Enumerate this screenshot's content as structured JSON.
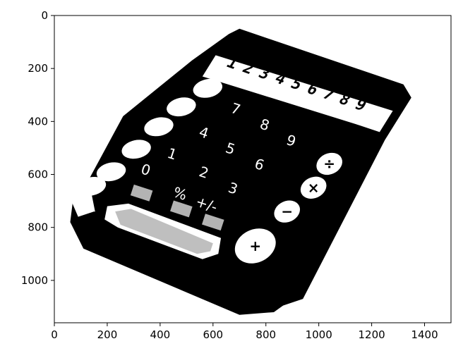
{
  "chart_data": {
    "type": "image",
    "image_subject": "binarized calculator photo",
    "colors": {
      "foreground": "#000000",
      "background": "#ffffff"
    },
    "xlim": [
      0,
      1500
    ],
    "ylim": [
      1160,
      0
    ],
    "y_inverted": true,
    "grid": false,
    "xticks": [
      0,
      200,
      400,
      600,
      800,
      1000,
      1200,
      1400
    ],
    "xtick_labels": [
      "0",
      "200",
      "400",
      "600",
      "800",
      "1000",
      "1200",
      "1400"
    ],
    "yticks": [
      0,
      200,
      400,
      600,
      800,
      1000
    ],
    "ytick_labels": [
      "0",
      "200",
      "400",
      "600",
      "800",
      "1000"
    ],
    "calculator": {
      "display_digits": "123456789",
      "keys": [
        "7",
        "8",
        "9",
        "4",
        "5",
        "6",
        "1",
        "2",
        "3",
        "0",
        "+/-",
        "%",
        "÷",
        "×",
        "−",
        "+"
      ]
    }
  }
}
